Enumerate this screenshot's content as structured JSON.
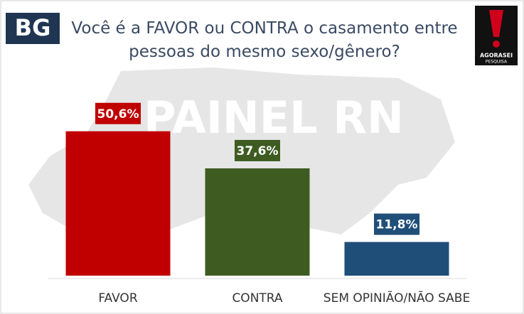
{
  "logo": "BG",
  "brand": "AGORASEI",
  "brand_sub": "PESQUISA",
  "watermark": "PAINEL RN",
  "chart_data": {
    "type": "bar",
    "title": "Você é a FAVOR ou CONTRA o casamento entre pessoas do mesmo sexo/gênero?",
    "categories": [
      "FAVOR",
      "CONTRA",
      "SEM OPINIÃO/NÃO SABE"
    ],
    "values": [
      50.6,
      37.6,
      11.8
    ],
    "value_labels": [
      "50,6%",
      "37,6%",
      "11,8%"
    ],
    "colors": [
      "#c00000",
      "#3e5c22",
      "#1f4e79"
    ],
    "ylim": [
      0,
      60
    ]
  }
}
